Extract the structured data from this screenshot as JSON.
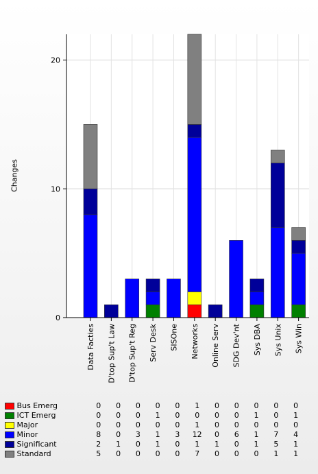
{
  "chart_data": {
    "type": "bar",
    "stacked": true,
    "ylabel": "Changes",
    "ylim": [
      0,
      22
    ],
    "yticks": [
      0,
      10,
      20
    ],
    "grid": true,
    "categories": [
      "Data Facties",
      "D'top Sup't Law",
      "D'top Sup't Reg",
      "Serv Desk",
      "SISOne",
      "Networks",
      "Online Serv",
      "SDG Dev'nt",
      "Sys DBA",
      "Sys Unix",
      "Sys Win"
    ],
    "series": [
      {
        "name": "Bus Emerg",
        "color": "#ff0000",
        "values": [
          0,
          0,
          0,
          0,
          0,
          1,
          0,
          0,
          0,
          0,
          0
        ]
      },
      {
        "name": "ICT Emerg",
        "color": "#008000",
        "values": [
          0,
          0,
          0,
          1,
          0,
          0,
          0,
          0,
          1,
          0,
          1
        ]
      },
      {
        "name": "Major",
        "color": "#ffff00",
        "values": [
          0,
          0,
          0,
          0,
          0,
          1,
          0,
          0,
          0,
          0,
          0
        ]
      },
      {
        "name": "Minor",
        "color": "#0000ff",
        "values": [
          8,
          0,
          3,
          1,
          3,
          12,
          0,
          6,
          1,
          7,
          4
        ]
      },
      {
        "name": "Significant",
        "color": "#000099",
        "values": [
          2,
          1,
          0,
          1,
          0,
          1,
          1,
          0,
          1,
          5,
          1
        ]
      },
      {
        "name": "Standard",
        "color": "#808080",
        "values": [
          5,
          0,
          0,
          0,
          0,
          7,
          0,
          0,
          0,
          1,
          1
        ]
      }
    ]
  }
}
